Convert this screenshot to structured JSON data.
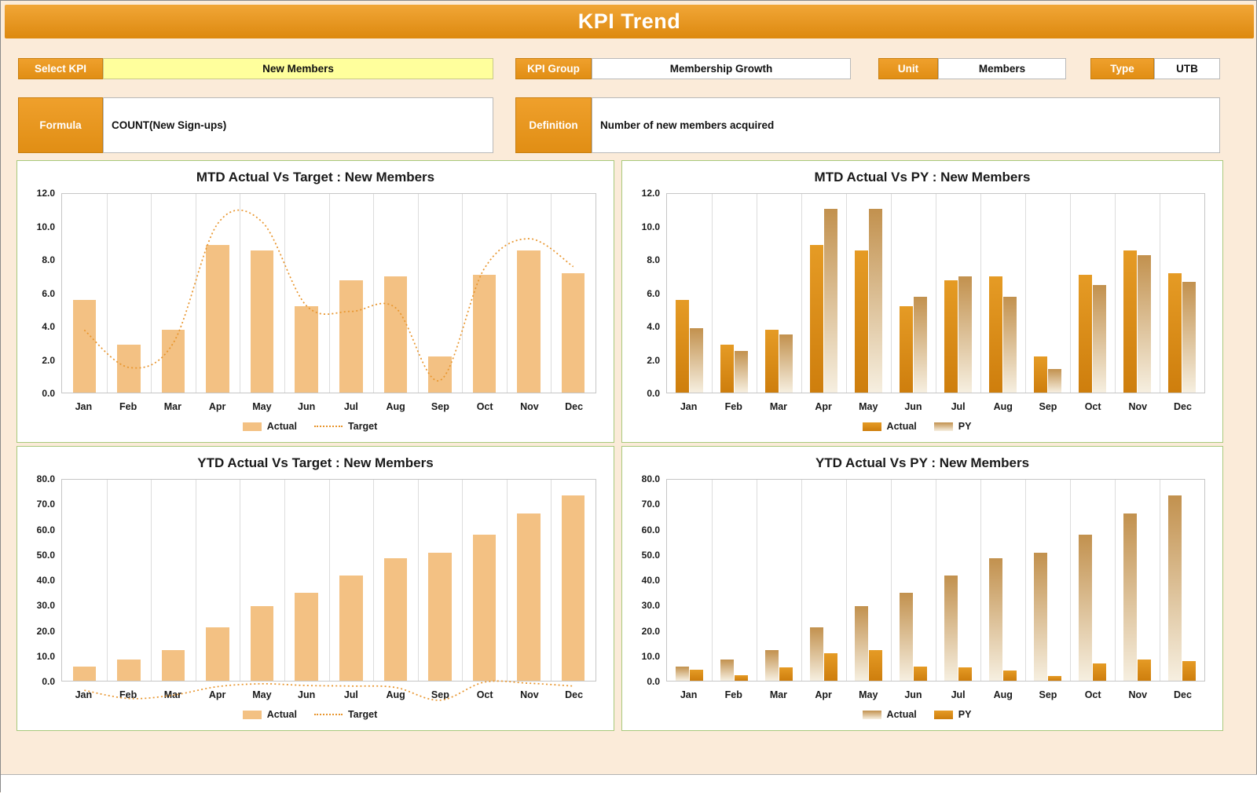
{
  "header": {
    "title": "KPI Trend"
  },
  "controls": {
    "select_kpi": {
      "label": "Select KPI",
      "value": "New Members"
    },
    "kpi_group": {
      "label": "KPI Group",
      "value": "Membership Growth"
    },
    "unit": {
      "label": "Unit",
      "value": "Members"
    },
    "type": {
      "label": "Type",
      "value": "UTB"
    },
    "formula": {
      "label": "Formula",
      "value": "COUNT(New Sign-ups)"
    },
    "definition": {
      "label": "Definition",
      "value": "Number of new members acquired"
    }
  },
  "colors": {
    "accent_orange": "#E6941F",
    "header_top": "#F1A637",
    "header_bottom": "#DD890F",
    "select_bg": "#FFFF9C",
    "page_bg": "#FBEBD9",
    "panel_border": "#A8C97C",
    "bar_light": "#F3C183",
    "bar_dark_top": "#E59B25",
    "bar_dark_bottom": "#CE7E0D",
    "grad_top": "#C2914E",
    "grad_bottom": "#F6EFE0",
    "target_line": "#E8952D"
  },
  "chart_data": [
    {
      "id": "mtd-actual-vs-target",
      "type": "bar",
      "title": "MTD Actual Vs Target : New Members",
      "categories": [
        "Jan",
        "Feb",
        "Mar",
        "Apr",
        "May",
        "Jun",
        "Jul",
        "Aug",
        "Sep",
        "Oct",
        "Nov",
        "Dec"
      ],
      "series": [
        {
          "name": "Actual",
          "type": "bar",
          "style": "light",
          "values": [
            5.6,
            2.9,
            3.8,
            8.9,
            8.6,
            5.2,
            6.8,
            7.0,
            2.2,
            7.1,
            8.6,
            7.2
          ]
        },
        {
          "name": "Target",
          "type": "line",
          "style": "dotted",
          "values": [
            4.7,
            2.7,
            4.0,
            10.4,
            10.5,
            6.0,
            5.7,
            5.9,
            2.0,
            8.0,
            9.6,
            8.1
          ]
        }
      ],
      "ylim": [
        0,
        12
      ],
      "ytick_step": 2,
      "grid": "vertical",
      "legend_position": "bottom"
    },
    {
      "id": "mtd-actual-vs-py",
      "type": "bar",
      "title": "MTD Actual Vs PY : New Members",
      "categories": [
        "Jan",
        "Feb",
        "Mar",
        "Apr",
        "May",
        "Jun",
        "Jul",
        "Aug",
        "Sep",
        "Oct",
        "Nov",
        "Dec"
      ],
      "series": [
        {
          "name": "Actual",
          "type": "bar",
          "style": "dark",
          "values": [
            5.6,
            2.9,
            3.8,
            8.9,
            8.6,
            5.2,
            6.8,
            7.0,
            2.2,
            7.1,
            8.6,
            7.2
          ]
        },
        {
          "name": "PY",
          "type": "bar",
          "style": "gradient",
          "values": [
            3.9,
            2.5,
            3.5,
            11.1,
            11.1,
            5.8,
            7.0,
            5.8,
            1.4,
            6.5,
            8.3,
            6.7
          ]
        }
      ],
      "ylim": [
        0,
        12
      ],
      "ytick_step": 2,
      "grid": "vertical",
      "legend_position": "bottom"
    },
    {
      "id": "ytd-actual-vs-target",
      "type": "bar",
      "title": "YTD Actual Vs Target : New Members",
      "categories": [
        "Jan",
        "Feb",
        "Mar",
        "Apr",
        "May",
        "Jun",
        "Jul",
        "Aug",
        "Sep",
        "Oct",
        "Nov",
        "Dec"
      ],
      "series": [
        {
          "name": "Actual",
          "type": "bar",
          "style": "light",
          "values": [
            5.6,
            8.5,
            12.3,
            21.2,
            29.8,
            35.0,
            41.8,
            48.8,
            51.0,
            58.0,
            66.6,
            73.8
          ]
        },
        {
          "name": "Target",
          "type": "line",
          "style": "dotted",
          "values": [
            5.5,
            2.6,
            3.8,
            6.8,
            7.8,
            7.2,
            7.0,
            6.5,
            2.0,
            8.4,
            8.0,
            7.0
          ]
        }
      ],
      "ylim": [
        0,
        80
      ],
      "ytick_step": 10,
      "grid": "vertical",
      "legend_position": "bottom"
    },
    {
      "id": "ytd-actual-vs-py",
      "type": "bar",
      "title": "YTD Actual Vs PY : New Members",
      "categories": [
        "Jan",
        "Feb",
        "Mar",
        "Apr",
        "May",
        "Jun",
        "Jul",
        "Aug",
        "Sep",
        "Oct",
        "Nov",
        "Dec"
      ],
      "series": [
        {
          "name": "Actual",
          "type": "bar",
          "style": "gradient",
          "values": [
            5.6,
            8.5,
            12.3,
            21.2,
            29.8,
            35.0,
            41.8,
            48.8,
            51.0,
            58.0,
            66.6,
            73.8
          ]
        },
        {
          "name": "PY",
          "type": "bar",
          "style": "dark",
          "values": [
            4.5,
            2.2,
            5.3,
            10.8,
            12.2,
            5.6,
            5.2,
            4.2,
            1.8,
            7.0,
            8.4,
            7.7
          ]
        }
      ],
      "ylim": [
        0,
        80
      ],
      "ytick_step": 10,
      "grid": "vertical",
      "legend_position": "bottom"
    }
  ]
}
